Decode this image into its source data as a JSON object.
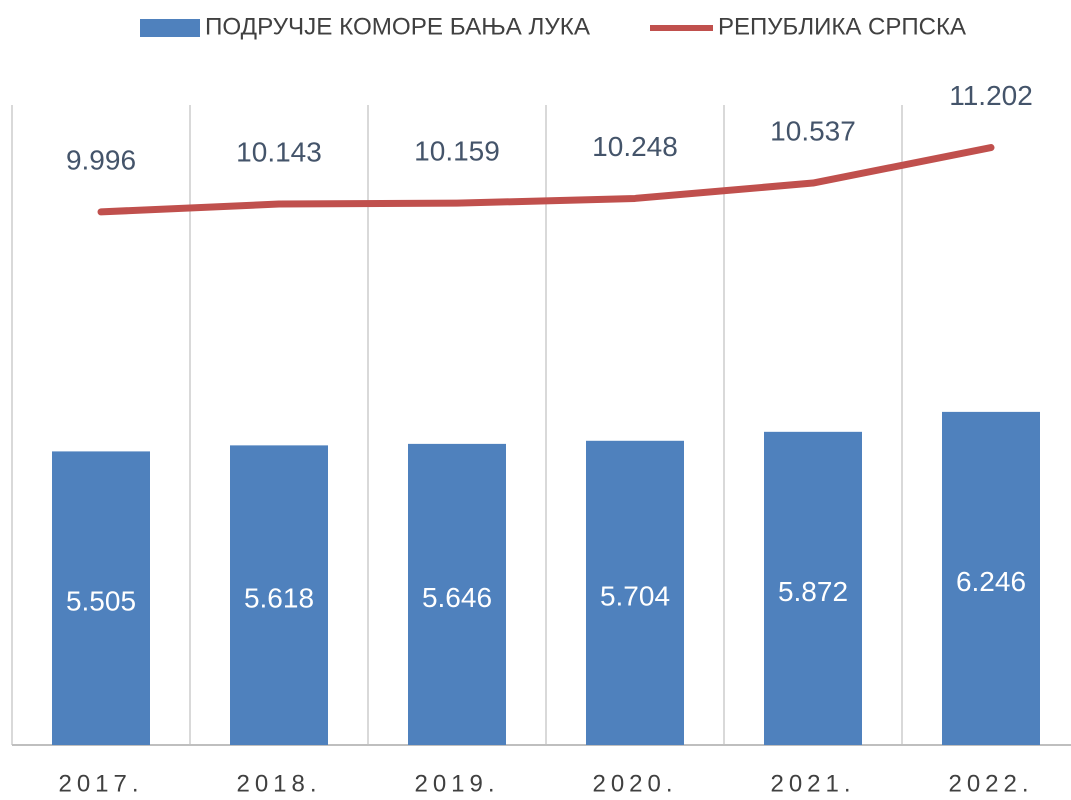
{
  "chart_data": {
    "type": "bar_line",
    "categories": [
      "2017.",
      "2018.",
      "2019.",
      "2020.",
      "2021.",
      "2022."
    ],
    "series": [
      {
        "name": "ПОДРУЧЈЕ КОМОРЕ БАЊА ЛУКА",
        "type": "bar",
        "color": "#4f81bd",
        "values": [
          5505,
          5618,
          5646,
          5704,
          5872,
          6246
        ],
        "value_labels": [
          "5.505",
          "5.618",
          "5.646",
          "5.704",
          "5.872",
          "6.246"
        ]
      },
      {
        "name": "РЕПУБЛИКА СРПСКА",
        "type": "line",
        "color": "#c0504d",
        "values": [
          9996,
          10143,
          10159,
          10248,
          10537,
          11202
        ],
        "value_labels": [
          "9.996",
          "10.143",
          "10.159",
          "10.248",
          "10.537",
          "11.202"
        ]
      }
    ],
    "ylim": [
      0,
      12000
    ],
    "grid": true,
    "legend": "top"
  }
}
